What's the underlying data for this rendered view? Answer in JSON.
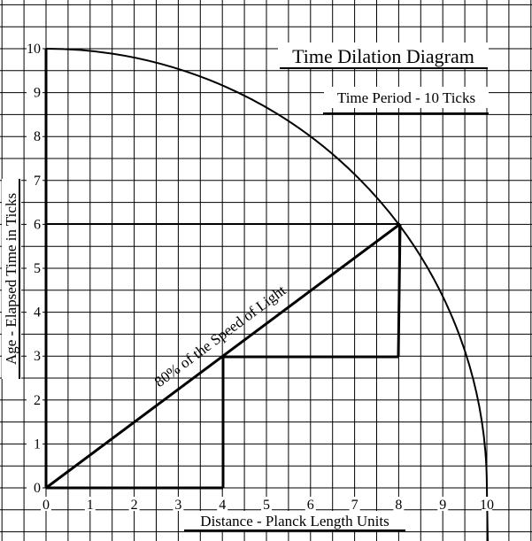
{
  "title": "Time Dilation Diagram",
  "subtitle": "Time Period - 10 Ticks",
  "annotation": "80% of the Speed of Light",
  "x_axis": {
    "label": "Distance - Planck Length Units",
    "ticks": [
      0,
      1,
      2,
      3,
      4,
      5,
      6,
      7,
      8,
      9,
      10
    ]
  },
  "y_axis": {
    "label": "Age - Elapsed Time in Ticks",
    "ticks": [
      0,
      1,
      2,
      3,
      4,
      5,
      6,
      7,
      8,
      9,
      10
    ]
  }
}
